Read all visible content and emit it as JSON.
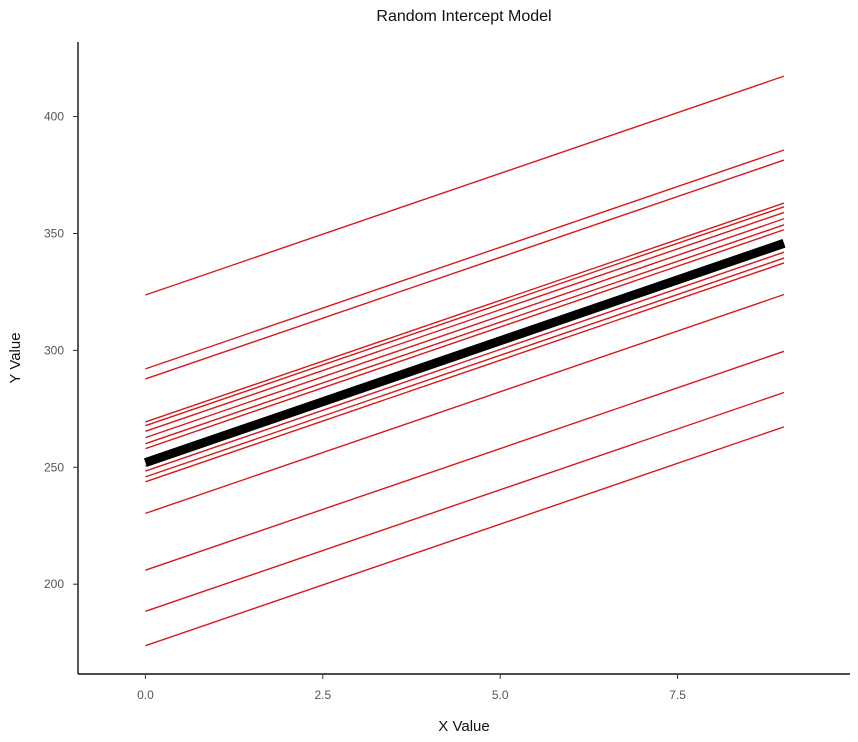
{
  "chart_data": {
    "type": "line",
    "title": "Random Intercept Model",
    "xlabel": "X Value",
    "ylabel": "Y Value",
    "xlim": [
      -0.95,
      9.93
    ],
    "ylim": [
      161.6,
      431.9
    ],
    "x_ticks": [
      0,
      2.5,
      5,
      7.5
    ],
    "x_tick_labels": [
      "0.0",
      "2.5",
      "5.0",
      "7.5"
    ],
    "y_ticks": [
      200,
      250,
      300,
      350,
      400
    ],
    "y_tick_labels": [
      "200",
      "250",
      "300",
      "350",
      "400"
    ],
    "grid": false,
    "legend": "none",
    "x_range": [
      0,
      9
    ],
    "slope": 10.4,
    "group_color": "#d7191c",
    "fixed_color": "#000000",
    "group_intercepts": [
      323.7,
      292.1,
      287.8,
      269.4,
      267.8,
      265.4,
      262.7,
      260.1,
      258.0,
      250.6,
      248.4,
      245.9,
      243.8,
      230.3,
      206.0,
      188.4,
      173.7
    ],
    "fixed_effect": {
      "intercept": 252.0,
      "end": 345.8
    }
  }
}
